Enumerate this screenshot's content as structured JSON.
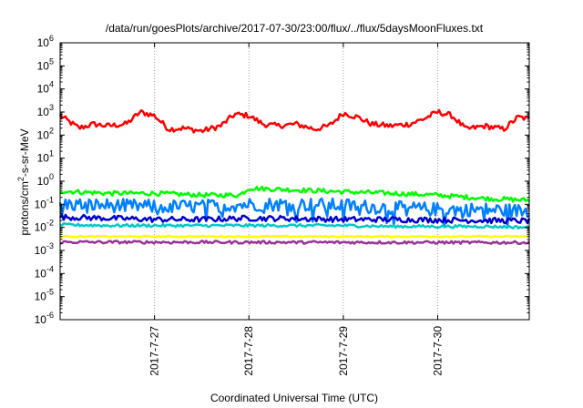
{
  "chart_data": {
    "type": "line",
    "title": "/data/run/goesPlots/archive/2017-07-30/23:00/flux/../flux/5daysMoonFluxes.txt",
    "xlabel": "Coordinated Universal Time (UTC)",
    "ylabel_parts": [
      "protons/cm",
      "2",
      "-s-sr-MeV"
    ],
    "y_scale": "log",
    "ylim_exponents": [
      -6,
      6
    ],
    "y_tick_exponents": [
      -6,
      -5,
      -4,
      -3,
      -2,
      -1,
      0,
      1,
      2,
      3,
      4,
      5,
      6
    ],
    "y_tick_base": "10",
    "x_domain_days": [
      26.0,
      30.97
    ],
    "x_ticks": [
      {
        "label": "2017-7-27",
        "day": 27
      },
      {
        "label": "2017-7-28",
        "day": 28
      },
      {
        "label": "2017-7-29",
        "day": 29
      },
      {
        "label": "2017-7-30",
        "day": 30
      }
    ],
    "grid": true,
    "series": [
      {
        "color": "#ff0000",
        "day": [
          26.0,
          26.2,
          26.35,
          26.5,
          26.7,
          26.85,
          27.0,
          27.15,
          27.3,
          27.5,
          27.7,
          27.85,
          28.0,
          28.15,
          28.3,
          28.5,
          28.7,
          28.85,
          29.0,
          29.15,
          29.3,
          29.5,
          29.7,
          29.85,
          30.0,
          30.15,
          30.3,
          30.5,
          30.7,
          30.85,
          30.97
        ],
        "value": [
          700,
          200,
          300,
          250,
          300,
          1000,
          700,
          180,
          200,
          150,
          250,
          800,
          700,
          300,
          250,
          300,
          180,
          250,
          900,
          600,
          300,
          250,
          300,
          500,
          1000,
          700,
          180,
          250,
          180,
          600,
          500
        ],
        "jitter": 0.12
      },
      {
        "color": "#00ff00",
        "day": [
          26.0,
          26.5,
          27.0,
          27.5,
          27.9,
          28.0,
          28.5,
          29.0,
          29.5,
          30.0,
          30.5,
          30.97
        ],
        "value": [
          0.38,
          0.3,
          0.3,
          0.25,
          0.25,
          0.5,
          0.42,
          0.35,
          0.3,
          0.25,
          0.18,
          0.15
        ],
        "jitter": 0.1
      },
      {
        "color": "#0080ff",
        "day": [
          26.0,
          26.5,
          27.0,
          27.5,
          28.0,
          28.5,
          29.0,
          29.5,
          30.0,
          30.5,
          30.97
        ],
        "value": [
          0.1,
          0.09,
          0.08,
          0.08,
          0.1,
          0.1,
          0.09,
          0.07,
          0.06,
          0.06,
          0.05
        ],
        "jitter": 0.3
      },
      {
        "color": "#0000cc",
        "day": [
          26.0,
          26.5,
          27.0,
          27.5,
          28.0,
          28.5,
          29.0,
          29.5,
          30.0,
          30.5,
          30.97
        ],
        "value": [
          0.028,
          0.025,
          0.022,
          0.022,
          0.025,
          0.024,
          0.022,
          0.022,
          0.021,
          0.02,
          0.019
        ],
        "jitter": 0.12
      },
      {
        "color": "#00c8c8",
        "day": [
          26.0,
          26.5,
          27.0,
          27.5,
          28.0,
          28.5,
          29.0,
          29.5,
          30.0,
          30.5,
          30.97
        ],
        "value": [
          0.013,
          0.012,
          0.012,
          0.012,
          0.012,
          0.012,
          0.012,
          0.011,
          0.011,
          0.011,
          0.01
        ],
        "jitter": 0.06
      },
      {
        "color": "#ffff00",
        "day": [
          26.0,
          30.97
        ],
        "value": [
          0.004,
          0.004
        ],
        "jitter": 0.03
      },
      {
        "color": "#993399",
        "day": [
          26.0,
          30.97
        ],
        "value": [
          0.0023,
          0.0022
        ],
        "jitter": 0.06
      }
    ]
  }
}
